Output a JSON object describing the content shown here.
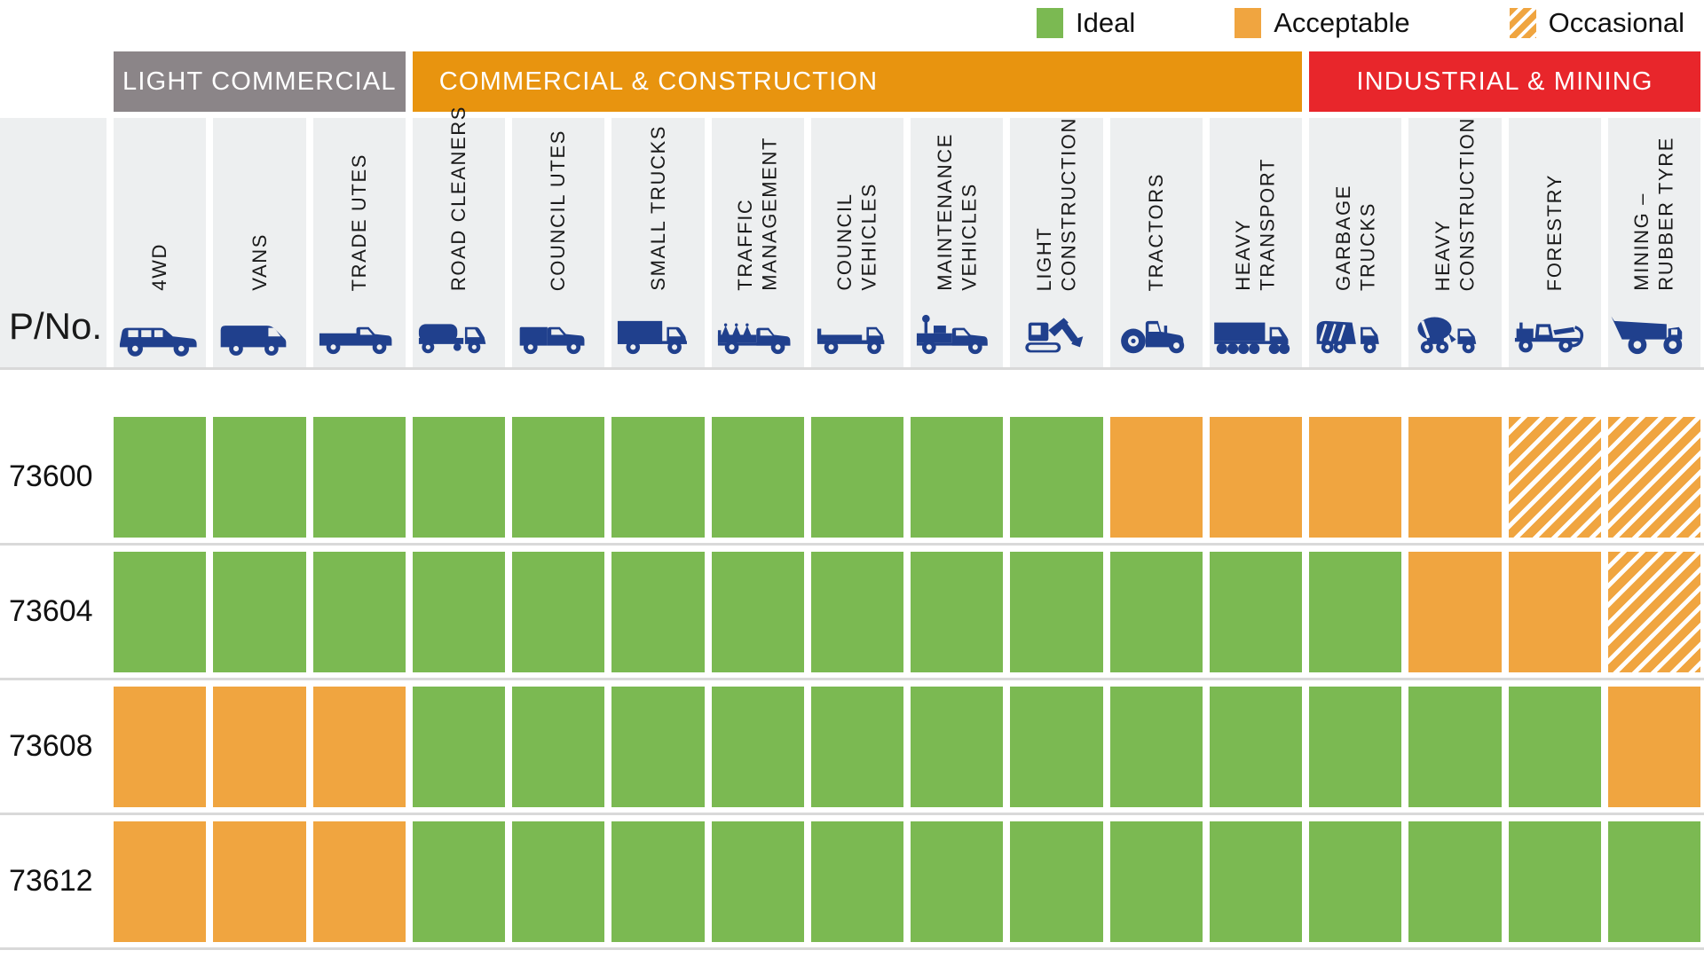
{
  "colors": {
    "ideal": "#7bb952",
    "acceptable": "#f0a540",
    "occasional_stripe": "#f0a540",
    "light_commercial": "#8b8588",
    "commercial_construction": "#e8940f",
    "industrial_mining": "#e8262b",
    "icon_blue": "#20408d",
    "header_bg": "#edeff0"
  },
  "legend": {
    "items": [
      {
        "label": "Ideal",
        "type": "ideal"
      },
      {
        "label": "Acceptable",
        "type": "acceptable"
      },
      {
        "label": "Occasional",
        "type": "occasional"
      }
    ]
  },
  "categories": [
    {
      "label": "LIGHT COMMERCIAL",
      "span": 3,
      "color": "#8b8588"
    },
    {
      "label": "COMMERCIAL & CONSTRUCTION",
      "span": 9,
      "color": "#e8940f"
    },
    {
      "label": "INDUSTRIAL & MINING",
      "span": 4,
      "color": "#e8262b"
    }
  ],
  "part_no_label": "P/No.",
  "columns": [
    {
      "label": "4WD",
      "lines": [
        "4WD"
      ],
      "icon": "4wd-icon"
    },
    {
      "label": "VANS",
      "lines": [
        "VANS"
      ],
      "icon": "van-icon"
    },
    {
      "label": "TRADE UTES",
      "lines": [
        "TRADE UTES"
      ],
      "icon": "trade-ute-icon"
    },
    {
      "label": "ROAD CLEANERS",
      "lines": [
        "ROAD CLEANERS"
      ],
      "icon": "road-cleaner-icon"
    },
    {
      "label": "COUNCIL UTES",
      "lines": [
        "COUNCIL UTES"
      ],
      "icon": "council-ute-icon"
    },
    {
      "label": "SMALL TRUCKS",
      "lines": [
        "SMALL TRUCKS"
      ],
      "icon": "small-truck-icon"
    },
    {
      "label": "TRAFFIC MANAGEMENT",
      "lines": [
        "TRAFFIC",
        "MANAGEMENT"
      ],
      "icon": "traffic-management-icon"
    },
    {
      "label": "COUNCIL VEHICLES",
      "lines": [
        "COUNCIL",
        "VEHICLES"
      ],
      "icon": "council-vehicle-icon"
    },
    {
      "label": "MAINTENANCE VEHICLES",
      "lines": [
        "MAINTENANCE",
        "VEHICLES"
      ],
      "icon": "maintenance-vehicle-icon"
    },
    {
      "label": "LIGHT CONSTRUCTION",
      "lines": [
        "LIGHT",
        "CONSTRUCTION"
      ],
      "icon": "light-construction-icon"
    },
    {
      "label": "TRACTORS",
      "lines": [
        "TRACTORS"
      ],
      "icon": "tractor-icon"
    },
    {
      "label": "HEAVY TRANSPORT",
      "lines": [
        "HEAVY",
        "TRANSPORT"
      ],
      "icon": "heavy-transport-icon"
    },
    {
      "label": "GARBAGE TRUCKS",
      "lines": [
        "GARBAGE",
        "TRUCKS"
      ],
      "icon": "garbage-truck-icon"
    },
    {
      "label": "HEAVY CONSTRUCTION",
      "lines": [
        "HEAVY",
        "CONSTRUCTION"
      ],
      "icon": "heavy-construction-icon"
    },
    {
      "label": "FORESTRY",
      "lines": [
        "FORESTRY"
      ],
      "icon": "forestry-icon"
    },
    {
      "label": "MINING – RUBBER TYRE",
      "lines": [
        "MINING –",
        "RUBBER TYRE"
      ],
      "icon": "mining-truck-icon"
    }
  ],
  "rows": [
    {
      "part_no": "73600",
      "cells": [
        "ideal",
        "ideal",
        "ideal",
        "ideal",
        "ideal",
        "ideal",
        "ideal",
        "ideal",
        "ideal",
        "ideal",
        "acceptable",
        "acceptable",
        "acceptable",
        "acceptable",
        "occasional",
        "occasional"
      ]
    },
    {
      "part_no": "73604",
      "cells": [
        "ideal",
        "ideal",
        "ideal",
        "ideal",
        "ideal",
        "ideal",
        "ideal",
        "ideal",
        "ideal",
        "ideal",
        "ideal",
        "ideal",
        "ideal",
        "acceptable",
        "acceptable",
        "occasional"
      ]
    },
    {
      "part_no": "73608",
      "cells": [
        "acceptable",
        "acceptable",
        "acceptable",
        "ideal",
        "ideal",
        "ideal",
        "ideal",
        "ideal",
        "ideal",
        "ideal",
        "ideal",
        "ideal",
        "ideal",
        "ideal",
        "ideal",
        "acceptable"
      ]
    },
    {
      "part_no": "73612",
      "cells": [
        "acceptable",
        "acceptable",
        "acceptable",
        "ideal",
        "ideal",
        "ideal",
        "ideal",
        "ideal",
        "ideal",
        "ideal",
        "ideal",
        "ideal",
        "ideal",
        "ideal",
        "ideal",
        "ideal"
      ]
    }
  ],
  "chart_data": {
    "type": "heatmap",
    "x_categories": [
      "4WD",
      "VANS",
      "TRADE UTES",
      "ROAD CLEANERS",
      "COUNCIL UTES",
      "SMALL TRUCKS",
      "TRAFFIC MANAGEMENT",
      "COUNCIL VEHICLES",
      "MAINTENANCE VEHICLES",
      "LIGHT CONSTRUCTION",
      "TRACTORS",
      "HEAVY TRANSPORT",
      "GARBAGE TRUCKS",
      "HEAVY CONSTRUCTION",
      "FORESTRY",
      "MINING – RUBBER TYRE"
    ],
    "column_groups": [
      {
        "label": "LIGHT COMMERCIAL",
        "columns": [
          1,
          3
        ]
      },
      {
        "label": "COMMERCIAL & CONSTRUCTION",
        "columns": [
          4,
          12
        ]
      },
      {
        "label": "INDUSTRIAL & MINING",
        "columns": [
          13,
          16
        ]
      }
    ],
    "y_categories": [
      "73600",
      "73604",
      "73608",
      "73612"
    ],
    "y_axis_label": "P/No.",
    "values": [
      [
        "ideal",
        "ideal",
        "ideal",
        "ideal",
        "ideal",
        "ideal",
        "ideal",
        "ideal",
        "ideal",
        "ideal",
        "acceptable",
        "acceptable",
        "acceptable",
        "acceptable",
        "occasional",
        "occasional"
      ],
      [
        "ideal",
        "ideal",
        "ideal",
        "ideal",
        "ideal",
        "ideal",
        "ideal",
        "ideal",
        "ideal",
        "ideal",
        "ideal",
        "ideal",
        "ideal",
        "acceptable",
        "acceptable",
        "occasional"
      ],
      [
        "acceptable",
        "acceptable",
        "acceptable",
        "ideal",
        "ideal",
        "ideal",
        "ideal",
        "ideal",
        "ideal",
        "ideal",
        "ideal",
        "ideal",
        "ideal",
        "ideal",
        "ideal",
        "acceptable"
      ],
      [
        "acceptable",
        "acceptable",
        "acceptable",
        "ideal",
        "ideal",
        "ideal",
        "ideal",
        "ideal",
        "ideal",
        "ideal",
        "ideal",
        "ideal",
        "ideal",
        "ideal",
        "ideal",
        "ideal"
      ]
    ],
    "legend": [
      "Ideal",
      "Acceptable",
      "Occasional"
    ],
    "legend_position": "top-right",
    "grid": false
  }
}
